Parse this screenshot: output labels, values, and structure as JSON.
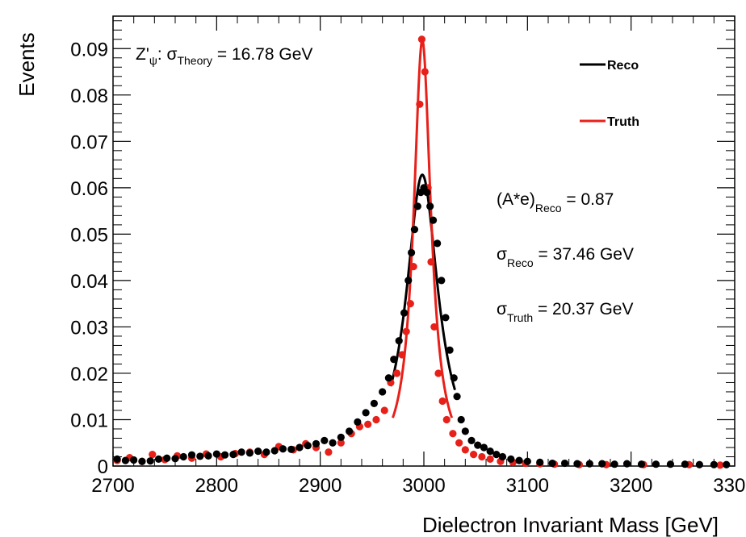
{
  "chart_data": {
    "type": "scatter",
    "xlabel": "Dielectron Invariant Mass [GeV]",
    "ylabel": "Events",
    "xlim": [
      2700,
      3300
    ],
    "ylim": [
      0,
      0.097
    ],
    "x_ticks": [
      "2700",
      "2800",
      "2900",
      "3000",
      "3100",
      "3200",
      "3300"
    ],
    "y_ticks": [
      "0",
      "0.01",
      "0.02",
      "0.03",
      "0.04",
      "0.05",
      "0.06",
      "0.07",
      "0.08",
      "0.09"
    ],
    "legend": [
      {
        "label": "Reco",
        "color": "#000000"
      },
      {
        "label": "Truth",
        "color": "#e8201a"
      }
    ],
    "annotations": {
      "model": {
        "prefix": "Z'",
        "sub1": "ψ",
        "mid": ": σ",
        "sub2": "Theory",
        "suffix": " = 16.78 GeV"
      },
      "acceptance": {
        "prefix": "(A*e)",
        "sub": "Reco",
        "suffix": " = 0.87"
      },
      "sigma_reco": {
        "prefix": "σ",
        "sub": "Reco",
        "suffix": " = 37.46 GeV"
      },
      "sigma_truth": {
        "prefix": "σ",
        "sub": "Truth",
        "suffix": " = 20.37 GeV"
      }
    },
    "series": [
      {
        "name": "Reco",
        "color": "#000000",
        "points": [
          [
            2704,
            0.0015
          ],
          [
            2712,
            0.0012
          ],
          [
            2720,
            0.0013
          ],
          [
            2728,
            0.001
          ],
          [
            2736,
            0.0011
          ],
          [
            2744,
            0.0015
          ],
          [
            2752,
            0.0017
          ],
          [
            2760,
            0.0016
          ],
          [
            2768,
            0.002
          ],
          [
            2776,
            0.0024
          ],
          [
            2784,
            0.0021
          ],
          [
            2792,
            0.0022
          ],
          [
            2800,
            0.0026
          ],
          [
            2808,
            0.0024
          ],
          [
            2816,
            0.0025
          ],
          [
            2824,
            0.003
          ],
          [
            2832,
            0.0028
          ],
          [
            2840,
            0.0032
          ],
          [
            2848,
            0.003
          ],
          [
            2856,
            0.0033
          ],
          [
            2864,
            0.0037
          ],
          [
            2872,
            0.0036
          ],
          [
            2880,
            0.004
          ],
          [
            2888,
            0.0044
          ],
          [
            2896,
            0.0048
          ],
          [
            2904,
            0.0055
          ],
          [
            2912,
            0.005
          ],
          [
            2920,
            0.0062
          ],
          [
            2928,
            0.0075
          ],
          [
            2936,
            0.0095
          ],
          [
            2944,
            0.0115
          ],
          [
            2952,
            0.0135
          ],
          [
            2960,
            0.016
          ],
          [
            2966,
            0.019
          ],
          [
            2971,
            0.023
          ],
          [
            2976,
            0.027
          ],
          [
            2981,
            0.033
          ],
          [
            2985,
            0.04
          ],
          [
            2988,
            0.046
          ],
          [
            2991,
            0.051
          ],
          [
            2994,
            0.056
          ],
          [
            2997,
            0.059
          ],
          [
            3000,
            0.06
          ],
          [
            3003,
            0.059
          ],
          [
            3006,
            0.056
          ],
          [
            3009,
            0.053
          ],
          [
            3013,
            0.048
          ],
          [
            3017,
            0.04
          ],
          [
            3021,
            0.032
          ],
          [
            3025,
            0.025
          ],
          [
            3029,
            0.019
          ],
          [
            3032,
            0.015
          ],
          [
            3036,
            0.01
          ],
          [
            3040,
            0.0075
          ],
          [
            3046,
            0.0055
          ],
          [
            3052,
            0.0045
          ],
          [
            3058,
            0.004
          ],
          [
            3064,
            0.0032
          ],
          [
            3070,
            0.0025
          ],
          [
            3076,
            0.002
          ],
          [
            3084,
            0.0015
          ],
          [
            3092,
            0.0012
          ],
          [
            3100,
            0.001
          ],
          [
            3112,
            0.0008
          ],
          [
            3124,
            0.0006
          ],
          [
            3136,
            0.0006
          ],
          [
            3148,
            0.0005
          ],
          [
            3160,
            0.0005
          ],
          [
            3172,
            0.0005
          ],
          [
            3184,
            0.0004
          ],
          [
            3196,
            0.0005
          ],
          [
            3210,
            0.0004
          ],
          [
            3224,
            0.0004
          ],
          [
            3238,
            0.0004
          ],
          [
            3252,
            0.0004
          ],
          [
            3266,
            0.0003
          ],
          [
            3280,
            0.0003
          ],
          [
            3292,
            0.0003
          ]
        ]
      },
      {
        "name": "Truth",
        "color": "#e8201a",
        "points": [
          [
            2704,
            0.0012
          ],
          [
            2716,
            0.0018
          ],
          [
            2728,
            0.001
          ],
          [
            2738,
            0.0025
          ],
          [
            2750,
            0.0014
          ],
          [
            2762,
            0.0022
          ],
          [
            2776,
            0.0017
          ],
          [
            2790,
            0.0026
          ],
          [
            2804,
            0.002
          ],
          [
            2818,
            0.0027
          ],
          [
            2832,
            0.003
          ],
          [
            2846,
            0.0025
          ],
          [
            2860,
            0.0042
          ],
          [
            2874,
            0.0035
          ],
          [
            2886,
            0.0048
          ],
          [
            2896,
            0.004
          ],
          [
            2908,
            0.003
          ],
          [
            2920,
            0.005
          ],
          [
            2930,
            0.007
          ],
          [
            2938,
            0.0085
          ],
          [
            2946,
            0.009
          ],
          [
            2954,
            0.01
          ],
          [
            2962,
            0.012
          ],
          [
            2968,
            0.018
          ],
          [
            2974,
            0.02
          ],
          [
            2979,
            0.024
          ],
          [
            2983,
            0.029
          ],
          [
            2987,
            0.035
          ],
          [
            2990,
            0.043
          ],
          [
            2993,
            0.056
          ],
          [
            2996,
            0.078
          ],
          [
            2998,
            0.092
          ],
          [
            3001,
            0.085
          ],
          [
            3004,
            0.06
          ],
          [
            3007,
            0.044
          ],
          [
            3010,
            0.03
          ],
          [
            3014,
            0.02
          ],
          [
            3018,
            0.014
          ],
          [
            3022,
            0.01
          ],
          [
            3028,
            0.007
          ],
          [
            3034,
            0.005
          ],
          [
            3040,
            0.0035
          ],
          [
            3048,
            0.0025
          ],
          [
            3056,
            0.002
          ],
          [
            3064,
            0.0015
          ],
          [
            3074,
            0.001
          ],
          [
            3086,
            0.0008
          ],
          [
            3098,
            0.0006
          ],
          [
            3112,
            0.0005
          ],
          [
            3126,
            0.0004
          ],
          [
            3150,
            0.0003
          ],
          [
            3176,
            0.0003
          ],
          [
            3212,
            0.0003
          ],
          [
            3256,
            0.0003
          ],
          [
            3286,
            0.0002
          ]
        ]
      }
    ],
    "fits": [
      {
        "name": "Reco fit",
        "color": "#000000",
        "type": "breit-wigner",
        "mean": 2998.5,
        "width": 37.46,
        "peak": 0.0628,
        "range": [
          2968,
          3030
        ]
      },
      {
        "name": "Truth fit",
        "color": "#e8201a",
        "type": "breit-wigner",
        "mean": 2998.5,
        "width": 20.37,
        "peak": 0.0918,
        "range": [
          2970,
          3027
        ]
      }
    ]
  }
}
